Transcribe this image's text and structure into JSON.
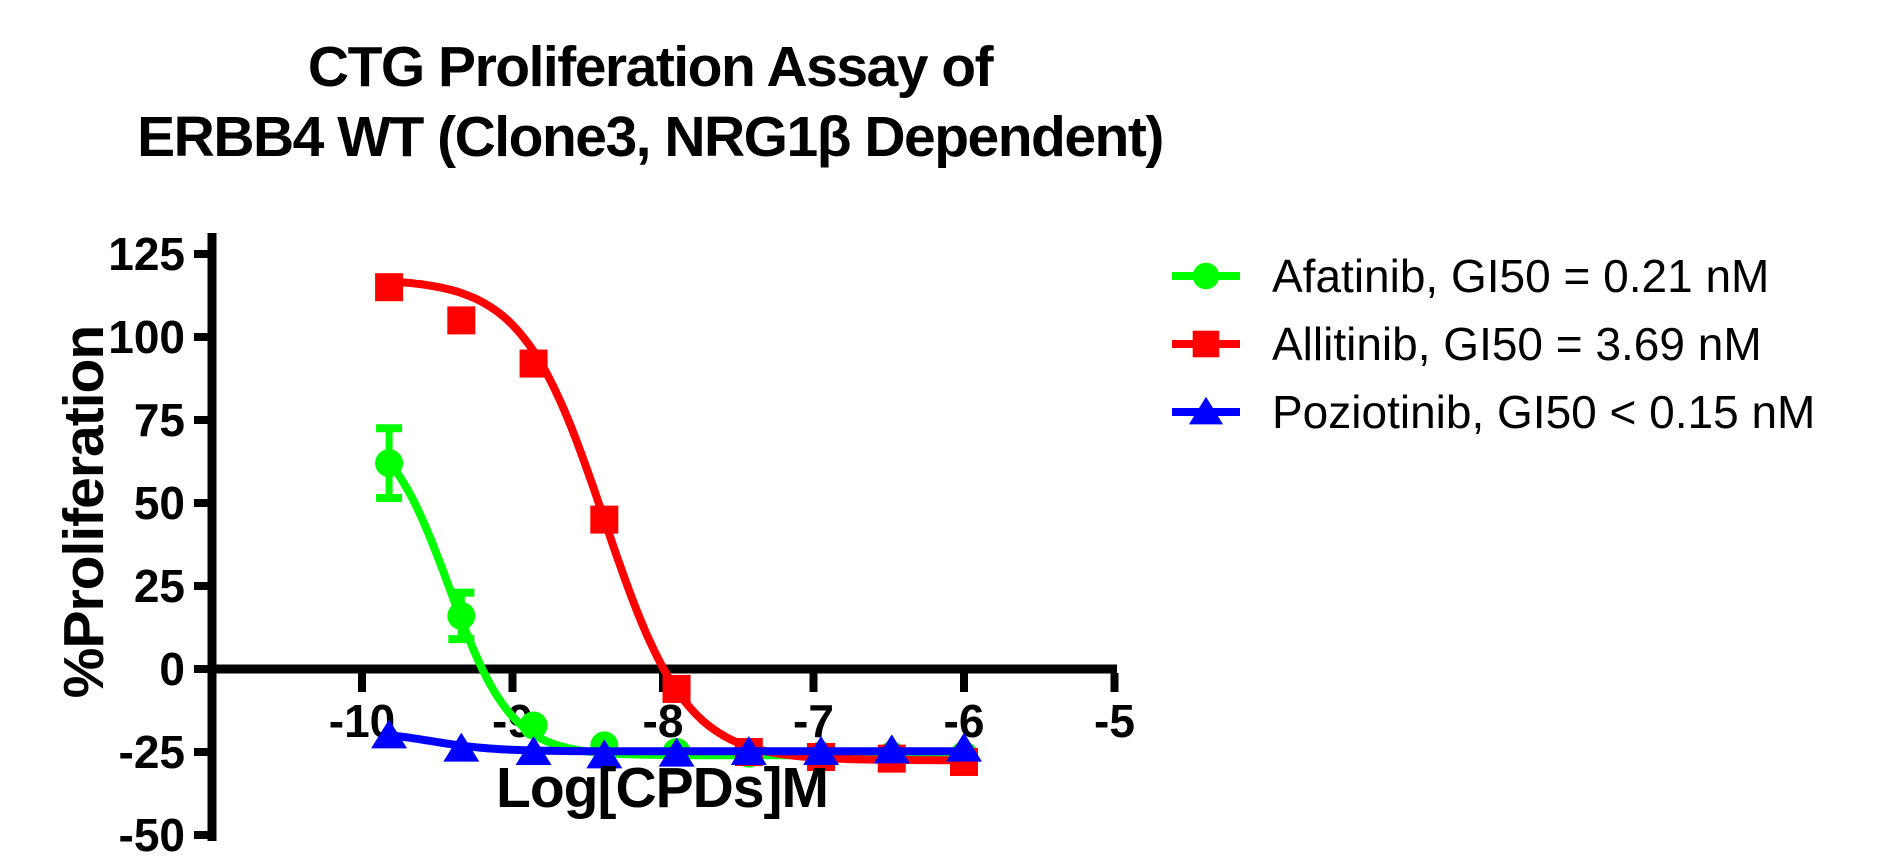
{
  "title": {
    "line1": "CTG Proliferation Assay of",
    "line2": "ERBB4 WT (Clone3, NRG1β Dependent)"
  },
  "chart_data": {
    "type": "line",
    "title": "CTG Proliferation Assay of ERBB4 WT (Clone3, NRG1β Dependent)",
    "xlabel": "Log[CPDs]M",
    "ylabel": "%Proliferation",
    "xlim": [
      -11,
      -5
    ],
    "ylim": [
      -50,
      125
    ],
    "xticks": [
      "-10",
      "-9",
      "-8",
      "-7",
      "-6",
      "-5"
    ],
    "yticks": [
      "125",
      "100",
      "75",
      "50",
      "25",
      "0",
      "-25",
      "-50"
    ],
    "grid": false,
    "legend_position": "right",
    "x": [
      -9.82,
      -9.34,
      -8.86,
      -8.39,
      -7.91,
      -7.43,
      -6.95,
      -6.48,
      -6.0
    ],
    "series": [
      {
        "name": "Afatinib",
        "legend_label": "Afatinib, GI50 = 0.21 nM",
        "gi50": "0.21 nM",
        "color": "#00FF00",
        "marker": "circle",
        "values": [
          62,
          16,
          -17,
          -23,
          -25,
          -25.5,
          -26,
          -26,
          -26
        ],
        "errors": [
          10.5,
          7,
          0,
          0,
          0,
          0,
          0,
          0,
          0
        ],
        "fit": {
          "top": 75,
          "bottom": -26,
          "logec50": -9.42,
          "hill": 2.1
        }
      },
      {
        "name": "Allitinib",
        "legend_label": "Allitinib, GI50 = 3.69 nM",
        "gi50": "3.69 nM",
        "color": "#FF0000",
        "marker": "square",
        "values": [
          115,
          105,
          92,
          45,
          -6,
          -25,
          -26.5,
          -27,
          -28
        ],
        "errors": [
          0,
          0,
          0,
          0,
          0,
          0,
          0,
          0,
          0
        ],
        "fit": {
          "top": 117.5,
          "bottom": -27.5,
          "logec50": -8.39,
          "hill": 1.6
        }
      },
      {
        "name": "Poziotinib",
        "legend_label": "Poziotinib, GI50 < 0.15 nM",
        "gi50": "< 0.15 nM",
        "color": "#0000FF",
        "marker": "triangle",
        "values": [
          -20,
          -24,
          -25,
          -26,
          -25.5,
          -25,
          -25,
          -24.5,
          -24
        ],
        "errors": [
          0,
          0,
          0,
          0,
          0,
          0,
          0,
          0,
          0
        ],
        "fit": {
          "top": -18.5,
          "bottom": -24.8,
          "logec50": -9.55,
          "hill": 2.0
        }
      }
    ]
  }
}
